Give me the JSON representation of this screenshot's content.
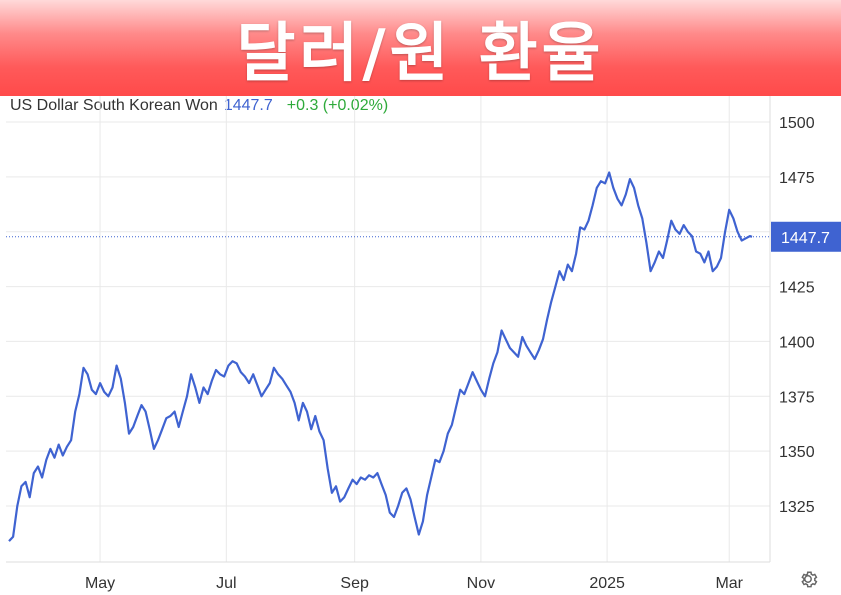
{
  "banner": {
    "title": "달러/원 환율"
  },
  "legend": {
    "instrument": "US Dollar South Korean Won",
    "price": "1447.7",
    "change": "+0.3 (+0.02%)"
  },
  "icons": {
    "settings": "gear-icon"
  },
  "colors": {
    "line": "#3f63d1",
    "change_positive": "#2eaa3a",
    "banner": "#ff4a4a"
  },
  "chart_data": {
    "type": "line",
    "x_start": "2024-03-18",
    "x_end": "2025-03-12",
    "xticks": [
      {
        "date": "2024-05-01",
        "label": "May"
      },
      {
        "date": "2024-07-01",
        "label": "Jul"
      },
      {
        "date": "2024-09-01",
        "label": "Sep"
      },
      {
        "date": "2024-11-01",
        "label": "Nov"
      },
      {
        "date": "2025-01-01",
        "label": "2025"
      },
      {
        "date": "2025-03-01",
        "label": "Mar"
      }
    ],
    "yticks": [
      1325,
      1350,
      1375,
      1400,
      1425,
      1450,
      1475,
      1500
    ],
    "ytick_labels": [
      "1325",
      "1350",
      "1375",
      "1400",
      "1425",
      "",
      "1475",
      "1500"
    ],
    "ylim": [
      1303,
      1508
    ],
    "grid": true,
    "last_value_label": "1447.7",
    "series": [
      {
        "points": [
          [
            "2024-03-18",
            1309
          ],
          [
            "2024-03-20",
            1311
          ],
          [
            "2024-03-22",
            1325
          ],
          [
            "2024-03-24",
            1334
          ],
          [
            "2024-03-26",
            1336
          ],
          [
            "2024-03-28",
            1329
          ],
          [
            "2024-03-30",
            1340
          ],
          [
            "2024-04-01",
            1343
          ],
          [
            "2024-04-03",
            1338
          ],
          [
            "2024-04-05",
            1346
          ],
          [
            "2024-04-07",
            1351
          ],
          [
            "2024-04-09",
            1347
          ],
          [
            "2024-04-11",
            1353
          ],
          [
            "2024-04-13",
            1348
          ],
          [
            "2024-04-15",
            1352
          ],
          [
            "2024-04-17",
            1355
          ],
          [
            "2024-04-19",
            1368
          ],
          [
            "2024-04-21",
            1376
          ],
          [
            "2024-04-23",
            1388
          ],
          [
            "2024-04-25",
            1385
          ],
          [
            "2024-04-27",
            1378
          ],
          [
            "2024-04-29",
            1376
          ],
          [
            "2024-05-01",
            1381
          ],
          [
            "2024-05-03",
            1377
          ],
          [
            "2024-05-05",
            1375
          ],
          [
            "2024-05-07",
            1379
          ],
          [
            "2024-05-09",
            1389
          ],
          [
            "2024-05-11",
            1383
          ],
          [
            "2024-05-13",
            1372
          ],
          [
            "2024-05-15",
            1358
          ],
          [
            "2024-05-17",
            1361
          ],
          [
            "2024-05-19",
            1366
          ],
          [
            "2024-05-21",
            1371
          ],
          [
            "2024-05-23",
            1368
          ],
          [
            "2024-05-25",
            1360
          ],
          [
            "2024-05-27",
            1351
          ],
          [
            "2024-05-29",
            1355
          ],
          [
            "2024-05-31",
            1360
          ],
          [
            "2024-06-02",
            1365
          ],
          [
            "2024-06-04",
            1366
          ],
          [
            "2024-06-06",
            1368
          ],
          [
            "2024-06-08",
            1361
          ],
          [
            "2024-06-10",
            1368
          ],
          [
            "2024-06-12",
            1375
          ],
          [
            "2024-06-14",
            1385
          ],
          [
            "2024-06-16",
            1379
          ],
          [
            "2024-06-18",
            1372
          ],
          [
            "2024-06-20",
            1379
          ],
          [
            "2024-06-22",
            1376
          ],
          [
            "2024-06-24",
            1382
          ],
          [
            "2024-06-26",
            1387
          ],
          [
            "2024-06-28",
            1385
          ],
          [
            "2024-06-30",
            1384
          ],
          [
            "2024-07-02",
            1389
          ],
          [
            "2024-07-04",
            1391
          ],
          [
            "2024-07-06",
            1390
          ],
          [
            "2024-07-08",
            1386
          ],
          [
            "2024-07-10",
            1384
          ],
          [
            "2024-07-12",
            1381
          ],
          [
            "2024-07-14",
            1385
          ],
          [
            "2024-07-16",
            1380
          ],
          [
            "2024-07-18",
            1375
          ],
          [
            "2024-07-20",
            1378
          ],
          [
            "2024-07-22",
            1381
          ],
          [
            "2024-07-24",
            1388
          ],
          [
            "2024-07-26",
            1385
          ],
          [
            "2024-07-28",
            1383
          ],
          [
            "2024-07-30",
            1380
          ],
          [
            "2024-08-01",
            1377
          ],
          [
            "2024-08-03",
            1372
          ],
          [
            "2024-08-05",
            1364
          ],
          [
            "2024-08-07",
            1372
          ],
          [
            "2024-08-09",
            1368
          ],
          [
            "2024-08-11",
            1360
          ],
          [
            "2024-08-13",
            1366
          ],
          [
            "2024-08-15",
            1359
          ],
          [
            "2024-08-17",
            1355
          ],
          [
            "2024-08-19",
            1342
          ],
          [
            "2024-08-21",
            1331
          ],
          [
            "2024-08-23",
            1334
          ],
          [
            "2024-08-25",
            1327
          ],
          [
            "2024-08-27",
            1329
          ],
          [
            "2024-08-29",
            1333
          ],
          [
            "2024-08-31",
            1337
          ],
          [
            "2024-09-02",
            1335
          ],
          [
            "2024-09-04",
            1338
          ],
          [
            "2024-09-06",
            1337
          ],
          [
            "2024-09-08",
            1339
          ],
          [
            "2024-09-10",
            1338
          ],
          [
            "2024-09-12",
            1340
          ],
          [
            "2024-09-14",
            1335
          ],
          [
            "2024-09-16",
            1330
          ],
          [
            "2024-09-18",
            1322
          ],
          [
            "2024-09-20",
            1320
          ],
          [
            "2024-09-22",
            1325
          ],
          [
            "2024-09-24",
            1331
          ],
          [
            "2024-09-26",
            1333
          ],
          [
            "2024-09-28",
            1328
          ],
          [
            "2024-09-30",
            1320
          ],
          [
            "2024-10-02",
            1312
          ],
          [
            "2024-10-04",
            1318
          ],
          [
            "2024-10-06",
            1330
          ],
          [
            "2024-10-08",
            1338
          ],
          [
            "2024-10-10",
            1346
          ],
          [
            "2024-10-12",
            1345
          ],
          [
            "2024-10-14",
            1350
          ],
          [
            "2024-10-16",
            1358
          ],
          [
            "2024-10-18",
            1362
          ],
          [
            "2024-10-20",
            1370
          ],
          [
            "2024-10-22",
            1378
          ],
          [
            "2024-10-24",
            1376
          ],
          [
            "2024-10-26",
            1381
          ],
          [
            "2024-10-28",
            1386
          ],
          [
            "2024-10-30",
            1382
          ],
          [
            "2024-11-01",
            1378
          ],
          [
            "2024-11-03",
            1375
          ],
          [
            "2024-11-05",
            1383
          ],
          [
            "2024-11-07",
            1390
          ],
          [
            "2024-11-09",
            1395
          ],
          [
            "2024-11-11",
            1405
          ],
          [
            "2024-11-13",
            1401
          ],
          [
            "2024-11-15",
            1397
          ],
          [
            "2024-11-17",
            1395
          ],
          [
            "2024-11-19",
            1393
          ],
          [
            "2024-11-21",
            1402
          ],
          [
            "2024-11-23",
            1398
          ],
          [
            "2024-11-25",
            1395
          ],
          [
            "2024-11-27",
            1392
          ],
          [
            "2024-11-29",
            1396
          ],
          [
            "2024-12-01",
            1401
          ],
          [
            "2024-12-03",
            1410
          ],
          [
            "2024-12-05",
            1418
          ],
          [
            "2024-12-07",
            1425
          ],
          [
            "2024-12-09",
            1432
          ],
          [
            "2024-12-11",
            1428
          ],
          [
            "2024-12-13",
            1435
          ],
          [
            "2024-12-15",
            1432
          ],
          [
            "2024-12-17",
            1440
          ],
          [
            "2024-12-19",
            1452
          ],
          [
            "2024-12-21",
            1451
          ],
          [
            "2024-12-23",
            1455
          ],
          [
            "2024-12-25",
            1462
          ],
          [
            "2024-12-27",
            1470
          ],
          [
            "2024-12-29",
            1473
          ],
          [
            "2024-12-31",
            1472
          ],
          [
            "2025-01-02",
            1477
          ],
          [
            "2025-01-04",
            1470
          ],
          [
            "2025-01-06",
            1465
          ],
          [
            "2025-01-08",
            1462
          ],
          [
            "2025-01-10",
            1467
          ],
          [
            "2025-01-12",
            1474
          ],
          [
            "2025-01-14",
            1470
          ],
          [
            "2025-01-16",
            1462
          ],
          [
            "2025-01-18",
            1456
          ],
          [
            "2025-01-20",
            1445
          ],
          [
            "2025-01-22",
            1432
          ],
          [
            "2025-01-24",
            1436
          ],
          [
            "2025-01-26",
            1441
          ],
          [
            "2025-01-28",
            1438
          ],
          [
            "2025-01-30",
            1446
          ],
          [
            "2025-02-01",
            1455
          ],
          [
            "2025-02-03",
            1451
          ],
          [
            "2025-02-05",
            1449
          ],
          [
            "2025-02-07",
            1453
          ],
          [
            "2025-02-09",
            1450
          ],
          [
            "2025-02-11",
            1448
          ],
          [
            "2025-02-13",
            1441
          ],
          [
            "2025-02-15",
            1440
          ],
          [
            "2025-02-17",
            1436
          ],
          [
            "2025-02-19",
            1441
          ],
          [
            "2025-02-21",
            1432
          ],
          [
            "2025-02-23",
            1434
          ],
          [
            "2025-02-25",
            1438
          ],
          [
            "2025-02-27",
            1450
          ],
          [
            "2025-03-01",
            1460
          ],
          [
            "2025-03-03",
            1456
          ],
          [
            "2025-03-05",
            1450
          ],
          [
            "2025-03-07",
            1446
          ],
          [
            "2025-03-09",
            1447
          ],
          [
            "2025-03-11",
            1448
          ],
          [
            "2025-03-12",
            1447.7
          ]
        ]
      }
    ]
  }
}
